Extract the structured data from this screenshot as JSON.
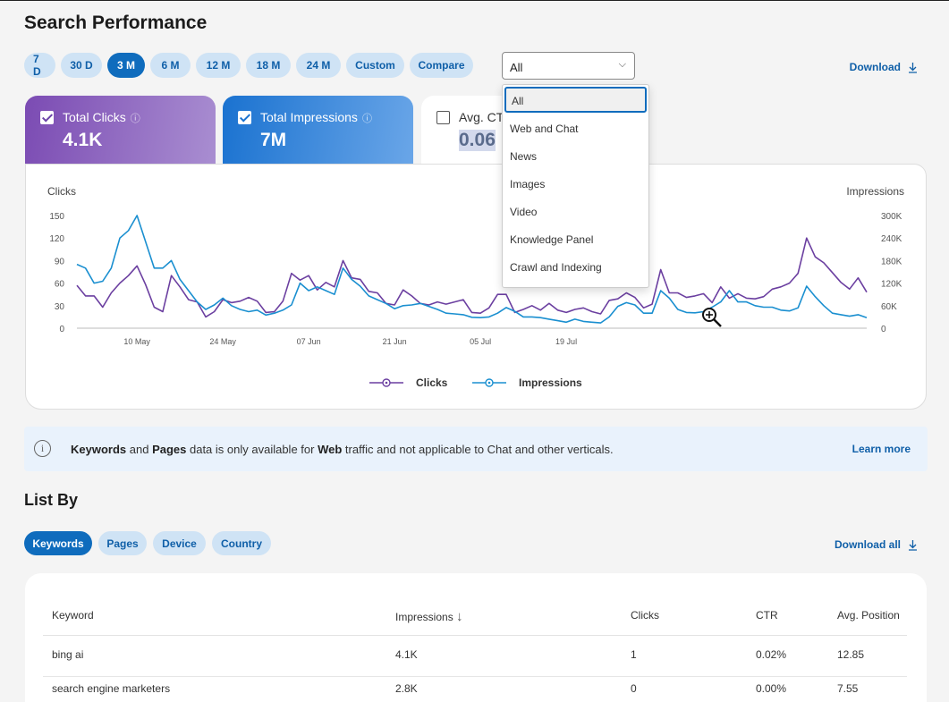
{
  "page": {
    "title": "Search Performance"
  },
  "time_pills": [
    "7 D",
    "30 D",
    "3 M",
    "6 M",
    "12 M",
    "18 M",
    "24 M",
    "Custom",
    "Compare"
  ],
  "active_time_pill": "3 M",
  "filter": {
    "value": "All",
    "options": [
      "All",
      "Web and Chat",
      "News",
      "Images",
      "Video",
      "Knowledge Panel",
      "Crawl and Indexing"
    ]
  },
  "download_label": "Download",
  "metrics": {
    "clicks": {
      "label": "Total Clicks",
      "value": "4.1K",
      "checked": true
    },
    "impressions": {
      "label": "Total Impressions",
      "value": "7M",
      "checked": true
    },
    "ctr": {
      "label": "Avg. CT",
      "value": "0.06",
      "checked": false
    }
  },
  "chart_data": {
    "type": "line",
    "y_left_label": "Clicks",
    "y_right_label": "Impressions",
    "y_left_ticks": [
      "0",
      "30",
      "60",
      "90",
      "120",
      "150"
    ],
    "y_right_ticks": [
      "0",
      "60K",
      "120K",
      "180K",
      "240K",
      "300K"
    ],
    "ylim_left": [
      0,
      150
    ],
    "ylim_right": [
      0,
      300000
    ],
    "x_ticks": [
      {
        "label": "10 May",
        "index": 7
      },
      {
        "label": "24 May",
        "index": 17
      },
      {
        "label": "07 Jun",
        "index": 27
      },
      {
        "label": "21 Jun",
        "index": 37
      },
      {
        "label": "05 Jul",
        "index": 47
      },
      {
        "label": "19 Jul",
        "index": 57
      }
    ],
    "series": [
      {
        "name": "Clicks",
        "color": "#6b3fa0",
        "axis": "left",
        "values": [
          57,
          43,
          43,
          28,
          47,
          60,
          70,
          83,
          58,
          28,
          22,
          70,
          55,
          38,
          35,
          15,
          22,
          38,
          34,
          36,
          41,
          36,
          21,
          22,
          36,
          73,
          64,
          70,
          51,
          61,
          55,
          90,
          67,
          65,
          49,
          47,
          33,
          31,
          51,
          43,
          33,
          31,
          35,
          32,
          35,
          38,
          21,
          20,
          27,
          45,
          45,
          21,
          25,
          30,
          24,
          33,
          24,
          21,
          25,
          27,
          22,
          19,
          37,
          39,
          47,
          41,
          27,
          32,
          78,
          47,
          47,
          41,
          43,
          46,
          34,
          55,
          40,
          46,
          40,
          39,
          42,
          52,
          55,
          60,
          73,
          120,
          95,
          87,
          74,
          61,
          52,
          67,
          48
        ]
      },
      {
        "name": "Impressions",
        "color": "#1a8fd0",
        "axis": "right",
        "values": [
          170,
          160,
          120,
          125,
          160,
          240,
          260,
          300,
          230,
          160,
          160,
          180,
          130,
          100,
          70,
          50,
          62,
          80,
          60,
          50,
          44,
          48,
          35,
          40,
          48,
          62,
          120,
          100,
          110,
          100,
          90,
          160,
          130,
          112,
          86,
          76,
          66,
          52,
          60,
          62,
          66,
          58,
          50,
          40,
          38,
          36,
          29,
          28,
          30,
          40,
          55,
          45,
          30,
          30,
          28,
          24,
          20,
          16,
          24,
          18,
          16,
          14,
          30,
          58,
          68,
          62,
          40,
          40,
          100,
          80,
          50,
          42,
          41,
          44,
          56,
          70,
          100,
          70,
          70,
          60,
          56,
          56,
          48,
          46,
          54,
          112,
          84,
          60,
          40,
          36,
          32,
          36,
          28
        ]
      }
    ],
    "legend": [
      "Clicks",
      "Impressions"
    ],
    "legend_position": "bottom"
  },
  "info_bar": {
    "prefix_bold_1": "Keywords",
    "text_1": " and ",
    "prefix_bold_2": "Pages",
    "text_2": " data is only available for ",
    "bold_3": "Web",
    "text_3": " traffic and not applicable to Chat and other verticals.",
    "link": "Learn more"
  },
  "list_by": {
    "title": "List By",
    "tabs": [
      "Keywords",
      "Pages",
      "Device",
      "Country"
    ],
    "active_tab": "Keywords",
    "download_all": "Download all"
  },
  "table": {
    "headers": [
      "Keyword",
      "Impressions",
      "Clicks",
      "CTR",
      "Avg. Position"
    ],
    "sort_indicator": "↓",
    "rows": [
      [
        "bing ai",
        "4.1K",
        "1",
        "0.02%",
        "12.85"
      ],
      [
        "search engine marketers",
        "2.8K",
        "0",
        "0.00%",
        "7.55"
      ]
    ]
  }
}
